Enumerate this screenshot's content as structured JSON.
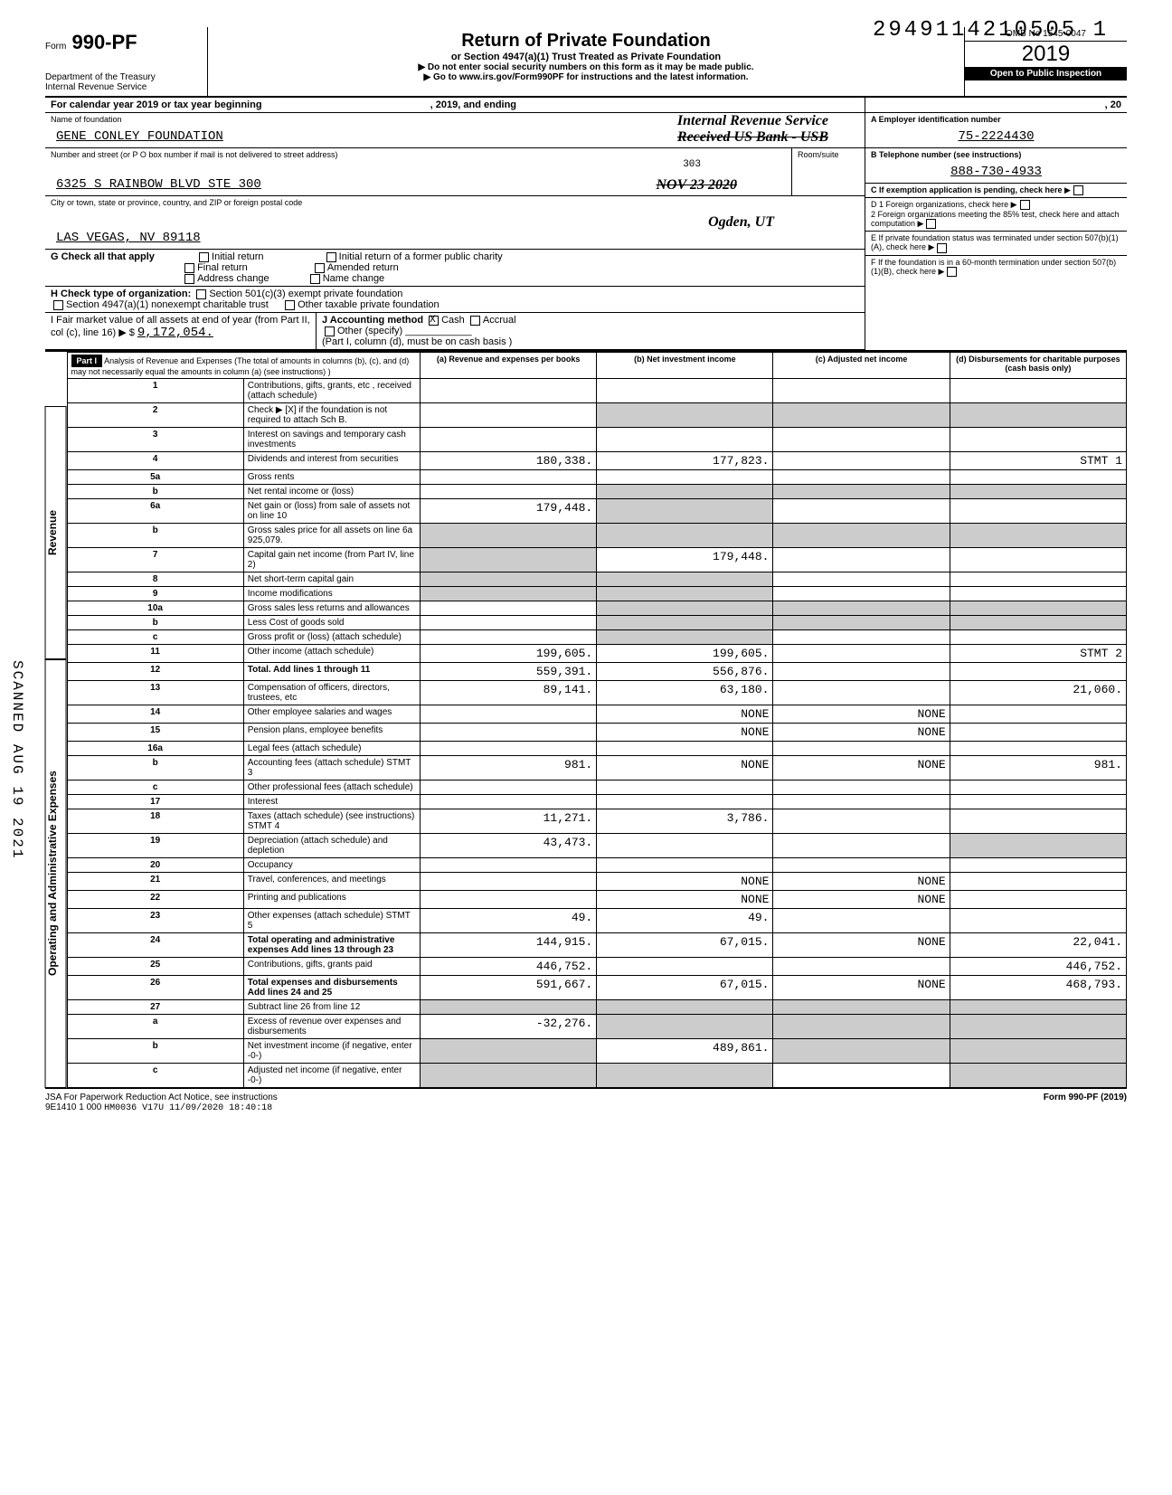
{
  "top_number": "2949114210505 1",
  "form": {
    "number": "990-PF",
    "prefix": "Form",
    "dept": "Department of the Treasury",
    "irs": "Internal Revenue Service"
  },
  "title": "Return of Private Foundation",
  "subtitle1": "or Section 4947(a)(1) Trust Treated as Private Foundation",
  "subtitle2": "▶ Do not enter social security numbers on this form as it may be made public.",
  "subtitle3": "▶ Go to www.irs.gov/Form990PF for instructions and the latest information.",
  "omb": "OMB No 1545-0047",
  "year": "2019",
  "inspection": "Open to Public Inspection",
  "calendar_line": "For calendar year 2019 or tax year beginning",
  "calendar_mid": ", 2019, and ending",
  "calendar_end": ", 20",
  "name_label": "Name of foundation",
  "name": "GENE CONLEY FOUNDATION",
  "stamp_irs": "Internal Revenue Service",
  "stamp_received": "Received US Bank - USB",
  "stamp_date": "NOV 23 2020",
  "stamp_ogden": "Ogden, UT",
  "street_label": "Number and street (or P O box number if mail is not delivered to street address)",
  "room_label": "Room/suite",
  "room_value": "303",
  "street": "6325 S RAINBOW BLVD STE 300",
  "city_label": "City or town, state or province, country, and ZIP or foreign postal code",
  "city": "LAS VEGAS, NV 89118",
  "boxA_label": "A  Employer identification number",
  "boxA_value": "75-2224430",
  "boxB_label": "B  Telephone number (see instructions)",
  "boxB_value": "888-730-4933",
  "boxC_label": "C  If exemption application is pending, check here",
  "boxD1": "D  1  Foreign organizations, check here",
  "boxD2": "2  Foreign organizations meeting the 85% test, check here and attach computation",
  "boxE": "E  If private foundation status was terminated under section 507(b)(1)(A), check here",
  "boxF": "F  If the foundation is in a 60-month termination under section 507(b)(1)(B), check here",
  "G_label": "G  Check all that apply",
  "G_opts": [
    "Initial return",
    "Final return",
    "Address change",
    "Initial return of a former public charity",
    "Amended return",
    "Name change"
  ],
  "H_label": "H  Check type of organization:",
  "H1": "Section 501(c)(3) exempt private foundation",
  "H2": "Section 4947(a)(1) nonexempt charitable trust",
  "H3": "Other taxable private foundation",
  "I_label": "I  Fair market value of all assets at end of year (from Part II, col (c), line 16) ▶ $",
  "I_value": "9,172,054.",
  "J_label": "J Accounting method",
  "J_cash": "Cash",
  "J_accrual": "Accrual",
  "J_other": "Other (specify)",
  "J_note": "(Part I, column (d), must be on cash basis )",
  "part1": "Part I",
  "part1_title": "Analysis of Revenue and Expenses (The total of amounts in columns (b), (c), and (d) may not necessarily equal the amounts in column (a) (see instructions) )",
  "cols": {
    "a": "(a) Revenue and expenses per books",
    "b": "(b) Net investment income",
    "c": "(c) Adjusted net income",
    "d": "(d) Disbursements for charitable purposes (cash basis only)"
  },
  "rows": [
    {
      "n": "1",
      "desc": "Contributions, gifts, grants, etc , received (attach schedule)",
      "a": "",
      "b": "",
      "c": "",
      "d": ""
    },
    {
      "n": "2",
      "desc": "Check ▶ [X] if the foundation is not required to attach Sch B.",
      "a": "",
      "b": "",
      "c": "",
      "d": "",
      "shadeB": true,
      "shadeC": true,
      "shadeD": true
    },
    {
      "n": "3",
      "desc": "Interest on savings and temporary cash investments",
      "a": "",
      "b": "",
      "c": "",
      "d": ""
    },
    {
      "n": "4",
      "desc": "Dividends and interest from securities",
      "a": "180,338.",
      "b": "177,823.",
      "c": "",
      "d": "STMT 1"
    },
    {
      "n": "5a",
      "desc": "Gross rents",
      "a": "",
      "b": "",
      "c": "",
      "d": ""
    },
    {
      "n": "b",
      "desc": "Net rental income or (loss)",
      "a": "",
      "b": "",
      "c": "",
      "d": "",
      "shadeB": true,
      "shadeC": true,
      "shadeD": true
    },
    {
      "n": "6a",
      "desc": "Net gain or (loss) from sale of assets not on line 10",
      "a": "179,448.",
      "b": "",
      "c": "",
      "d": "",
      "shadeB": true
    },
    {
      "n": "b",
      "desc": "Gross sales price for all assets on line 6a   925,079.",
      "a": "",
      "b": "",
      "c": "",
      "d": "",
      "shadeA": true,
      "shadeB": true,
      "shadeC": true,
      "shadeD": true
    },
    {
      "n": "7",
      "desc": "Capital gain net income (from Part IV, line 2)",
      "a": "",
      "b": "179,448.",
      "c": "",
      "d": "",
      "shadeA": true
    },
    {
      "n": "8",
      "desc": "Net short-term capital gain",
      "a": "",
      "b": "",
      "c": "",
      "d": "",
      "shadeA": true,
      "shadeB": true
    },
    {
      "n": "9",
      "desc": "Income modifications",
      "a": "",
      "b": "",
      "c": "",
      "d": "",
      "shadeA": true,
      "shadeB": true
    },
    {
      "n": "10a",
      "desc": "Gross sales less returns and allowances",
      "a": "",
      "b": "",
      "c": "",
      "d": "",
      "shadeB": true,
      "shadeC": true,
      "shadeD": true
    },
    {
      "n": "b",
      "desc": "Less Cost of goods sold",
      "a": "",
      "b": "",
      "c": "",
      "d": "",
      "shadeB": true,
      "shadeC": true,
      "shadeD": true
    },
    {
      "n": "c",
      "desc": "Gross profit or (loss) (attach schedule)",
      "a": "",
      "b": "",
      "c": "",
      "d": "",
      "shadeB": true
    },
    {
      "n": "11",
      "desc": "Other income (attach schedule)",
      "a": "199,605.",
      "b": "199,605.",
      "c": "",
      "d": "STMT 2"
    },
    {
      "n": "12",
      "desc": "Total. Add lines 1 through 11",
      "a": "559,391.",
      "b": "556,876.",
      "c": "",
      "d": "",
      "bold": true
    },
    {
      "n": "13",
      "desc": "Compensation of officers, directors, trustees, etc",
      "a": "89,141.",
      "b": "63,180.",
      "c": "",
      "d": "21,060."
    },
    {
      "n": "14",
      "desc": "Other employee salaries and wages",
      "a": "",
      "b": "NONE",
      "c": "NONE",
      "d": ""
    },
    {
      "n": "15",
      "desc": "Pension plans, employee benefits",
      "a": "",
      "b": "NONE",
      "c": "NONE",
      "d": ""
    },
    {
      "n": "16a",
      "desc": "Legal fees (attach schedule)",
      "a": "",
      "b": "",
      "c": "",
      "d": ""
    },
    {
      "n": "b",
      "desc": "Accounting fees (attach schedule) STMT 3",
      "a": "981.",
      "b": "NONE",
      "c": "NONE",
      "d": "981."
    },
    {
      "n": "c",
      "desc": "Other professional fees (attach schedule)",
      "a": "",
      "b": "",
      "c": "",
      "d": ""
    },
    {
      "n": "17",
      "desc": "Interest",
      "a": "",
      "b": "",
      "c": "",
      "d": ""
    },
    {
      "n": "18",
      "desc": "Taxes (attach schedule) (see instructions) STMT 4",
      "a": "11,271.",
      "b": "3,786.",
      "c": "",
      "d": ""
    },
    {
      "n": "19",
      "desc": "Depreciation (attach schedule) and depletion",
      "a": "43,473.",
      "b": "",
      "c": "",
      "d": "",
      "shadeD": true
    },
    {
      "n": "20",
      "desc": "Occupancy",
      "a": "",
      "b": "",
      "c": "",
      "d": ""
    },
    {
      "n": "21",
      "desc": "Travel, conferences, and meetings",
      "a": "",
      "b": "NONE",
      "c": "NONE",
      "d": ""
    },
    {
      "n": "22",
      "desc": "Printing and publications",
      "a": "",
      "b": "NONE",
      "c": "NONE",
      "d": ""
    },
    {
      "n": "23",
      "desc": "Other expenses (attach schedule) STMT 5",
      "a": "49.",
      "b": "49.",
      "c": "",
      "d": ""
    },
    {
      "n": "24",
      "desc": "Total operating and administrative expenses Add lines 13 through 23",
      "a": "144,915.",
      "b": "67,015.",
      "c": "NONE",
      "d": "22,041.",
      "bold": true
    },
    {
      "n": "25",
      "desc": "Contributions, gifts, grants paid",
      "a": "446,752.",
      "b": "",
      "c": "",
      "d": "446,752."
    },
    {
      "n": "26",
      "desc": "Total expenses and disbursements Add lines 24 and 25",
      "a": "591,667.",
      "b": "67,015.",
      "c": "NONE",
      "d": "468,793.",
      "bold": true
    },
    {
      "n": "27",
      "desc": "Subtract line 26 from line 12",
      "a": "",
      "b": "",
      "c": "",
      "d": "",
      "shadeA": true,
      "shadeB": true,
      "shadeC": true,
      "shadeD": true
    },
    {
      "n": "a",
      "desc": "Excess of revenue over expenses and disbursements",
      "a": "-32,276.",
      "b": "",
      "c": "",
      "d": "",
      "shadeB": true,
      "shadeC": true,
      "shadeD": true
    },
    {
      "n": "b",
      "desc": "Net investment income (if negative, enter -0-)",
      "a": "",
      "b": "489,861.",
      "c": "",
      "d": "",
      "shadeA": true,
      "shadeC": true,
      "shadeD": true
    },
    {
      "n": "c",
      "desc": "Adjusted net income (if negative, enter -0-)",
      "a": "",
      "b": "",
      "c": "",
      "d": "",
      "shadeA": true,
      "shadeB": true,
      "shadeD": true
    }
  ],
  "side_labels": {
    "rev": "Revenue",
    "exp": "Operating and Administrative Expenses"
  },
  "footer_left": "JSA For Paperwork Reduction Act Notice, see instructions",
  "footer_code": "9E1410 1 000",
  "footer_stamp": "HM0036 V17U 11/09/2020 18:40:18",
  "footer_right": "Form 990-PF (2019)",
  "scanned": "SCANNED AUG 19 2021"
}
